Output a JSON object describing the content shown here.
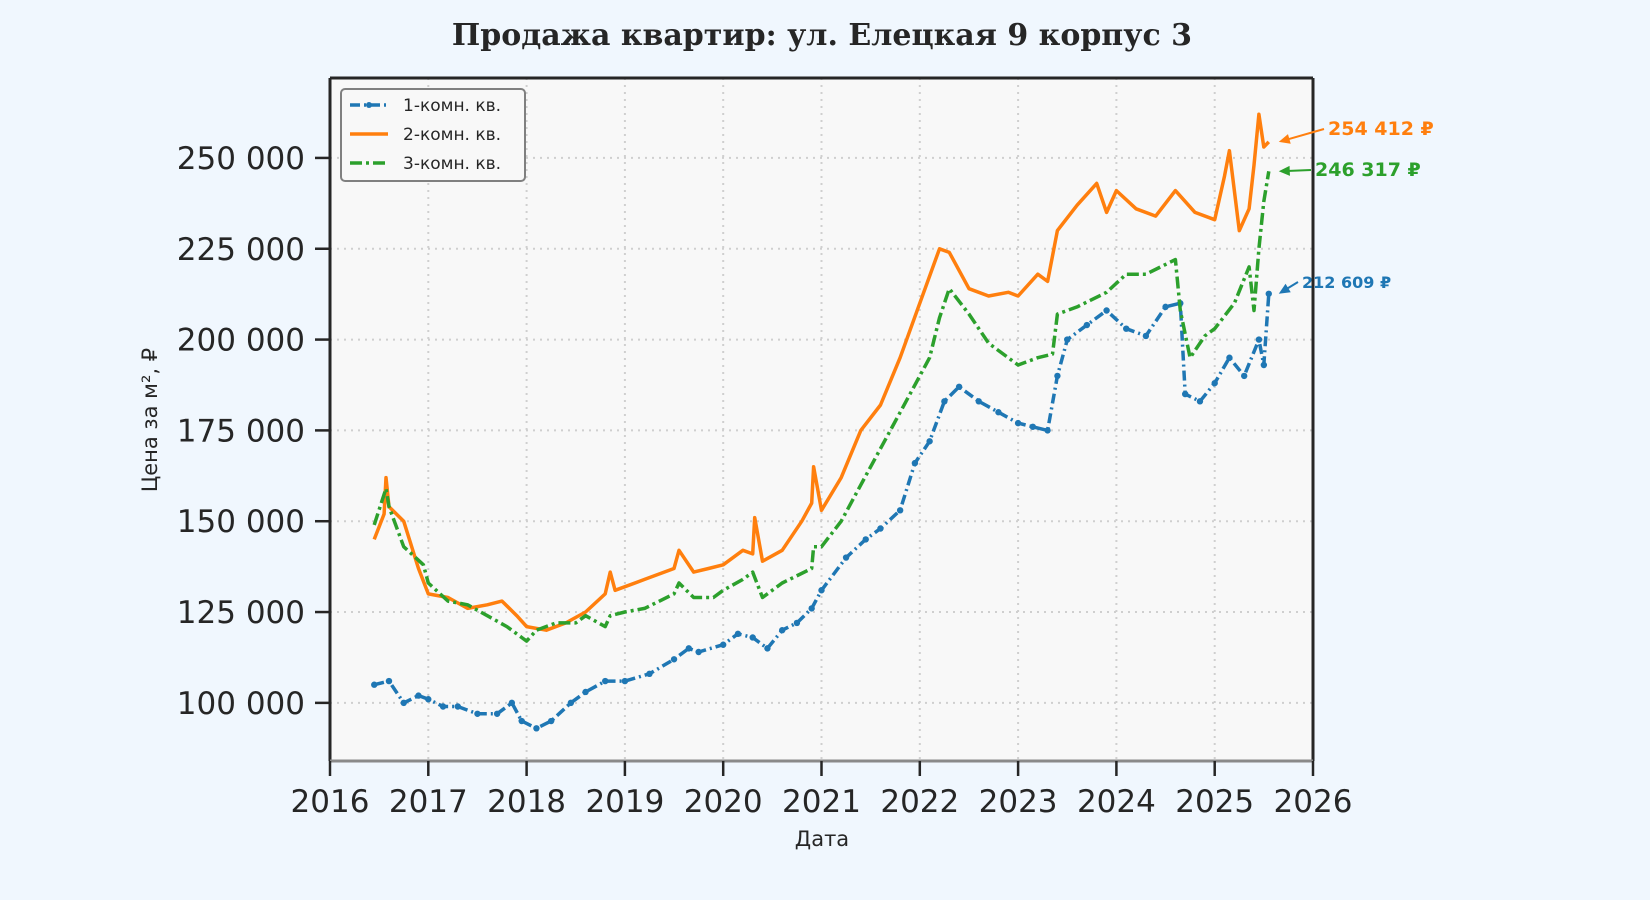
{
  "chart_data": {
    "type": "line",
    "title": "Продажа квартир: ул. Елецкая 9 корпус 3",
    "xlabel": "Дата",
    "ylabel": "Цена за м², ₽",
    "xlim": [
      2016,
      2026
    ],
    "ylim": [
      84000,
      272000
    ],
    "xticks": [
      "2016",
      "2017",
      "2018",
      "2019",
      "2020",
      "2021",
      "2022",
      "2023",
      "2024",
      "2025",
      "2026"
    ],
    "yticks": [
      {
        "value": 100000,
        "label": "100 000"
      },
      {
        "value": 125000,
        "label": "125 000"
      },
      {
        "value": 150000,
        "label": "150 000"
      },
      {
        "value": 175000,
        "label": "175 000"
      },
      {
        "value": 200000,
        "label": "200 000"
      },
      {
        "value": 225000,
        "label": "225 000"
      },
      {
        "value": 250000,
        "label": "250 000"
      }
    ],
    "grid": true,
    "legend_position": "top-left",
    "series": [
      {
        "name": "1-комн. кв.",
        "color": "#1f77b4",
        "line_style": "dash-dot-markers",
        "end_label": "212 609 ₽",
        "x": [
          2016.45,
          2016.6,
          2016.75,
          2016.9,
          2017.0,
          2017.15,
          2017.3,
          2017.5,
          2017.7,
          2017.85,
          2017.95,
          2018.1,
          2018.25,
          2018.45,
          2018.6,
          2018.8,
          2019.0,
          2019.25,
          2019.5,
          2019.65,
          2019.75,
          2020.0,
          2020.15,
          2020.3,
          2020.45,
          2020.6,
          2020.75,
          2020.9,
          2021.0,
          2021.25,
          2021.45,
          2021.6,
          2021.8,
          2021.95,
          2022.1,
          2022.25,
          2022.4,
          2022.6,
          2022.8,
          2023.0,
          2023.15,
          2023.3,
          2023.4,
          2023.5,
          2023.7,
          2023.9,
          2024.1,
          2024.3,
          2024.5,
          2024.65,
          2024.7,
          2024.85,
          2025.0,
          2025.15,
          2025.3,
          2025.45,
          2025.5,
          2025.55
        ],
        "values": [
          105000,
          106000,
          100000,
          102000,
          101000,
          99000,
          99000,
          97000,
          97000,
          100000,
          95000,
          93000,
          95000,
          100000,
          103000,
          106000,
          106000,
          108000,
          112000,
          115000,
          114000,
          116000,
          119000,
          118000,
          115000,
          120000,
          122000,
          126000,
          131000,
          140000,
          145000,
          148000,
          153000,
          166000,
          172000,
          183000,
          187000,
          183000,
          180000,
          177000,
          176000,
          175000,
          190000,
          200000,
          204000,
          208000,
          203000,
          201000,
          209000,
          210000,
          185000,
          183000,
          188000,
          195000,
          190000,
          200000,
          193000,
          212609
        ]
      },
      {
        "name": "2-комн. кв.",
        "color": "#ff7f0e",
        "line_style": "solid",
        "end_label": "254 412 ₽",
        "x": [
          2016.45,
          2016.55,
          2016.57,
          2016.6,
          2016.75,
          2016.9,
          2017.0,
          2017.2,
          2017.4,
          2017.6,
          2017.75,
          2017.9,
          2018.0,
          2018.2,
          2018.4,
          2018.6,
          2018.8,
          2018.85,
          2018.9,
          2019.2,
          2019.5,
          2019.55,
          2019.7,
          2019.85,
          2020.0,
          2020.2,
          2020.3,
          2020.32,
          2020.4,
          2020.6,
          2020.8,
          2020.9,
          2020.92,
          2021.0,
          2021.2,
          2021.4,
          2021.6,
          2021.8,
          2022.0,
          2022.2,
          2022.3,
          2022.5,
          2022.7,
          2022.9,
          2023.0,
          2023.2,
          2023.3,
          2023.4,
          2023.6,
          2023.8,
          2023.9,
          2024.0,
          2024.2,
          2024.4,
          2024.6,
          2024.8,
          2025.0,
          2025.1,
          2025.15,
          2025.25,
          2025.35,
          2025.4,
          2025.45,
          2025.5,
          2025.55
        ],
        "values": [
          145000,
          152000,
          162000,
          154000,
          150000,
          137000,
          130000,
          129000,
          126000,
          127000,
          128000,
          124000,
          121000,
          120000,
          122000,
          125000,
          130000,
          136000,
          131000,
          134000,
          137000,
          142000,
          136000,
          137000,
          138000,
          142000,
          141000,
          151000,
          139000,
          142000,
          150000,
          155000,
          165000,
          153000,
          162000,
          175000,
          182000,
          195000,
          210000,
          225000,
          224000,
          214000,
          212000,
          213000,
          212000,
          218000,
          216000,
          230000,
          237000,
          243000,
          235000,
          241000,
          236000,
          234000,
          241000,
          235000,
          233000,
          245000,
          252000,
          230000,
          236000,
          248000,
          262000,
          253000,
          254412
        ]
      },
      {
        "name": "3-комн. кв.",
        "color": "#2ca02c",
        "line_style": "dash-dot",
        "end_label": "246 317 ₽",
        "x": [
          2016.45,
          2016.57,
          2016.6,
          2016.75,
          2016.95,
          2017.0,
          2017.2,
          2017.4,
          2017.6,
          2017.8,
          2018.0,
          2018.1,
          2018.3,
          2018.5,
          2018.6,
          2018.8,
          2018.85,
          2019.0,
          2019.2,
          2019.5,
          2019.55,
          2019.7,
          2019.9,
          2020.0,
          2020.2,
          2020.3,
          2020.4,
          2020.6,
          2020.9,
          2020.92,
          2021.0,
          2021.2,
          2021.4,
          2021.6,
          2021.9,
          2022.1,
          2022.2,
          2022.3,
          2022.5,
          2022.7,
          2023.0,
          2023.2,
          2023.35,
          2023.4,
          2023.6,
          2023.9,
          2024.1,
          2024.3,
          2024.6,
          2024.65,
          2024.75,
          2024.9,
          2025.0,
          2025.2,
          2025.35,
          2025.4,
          2025.45,
          2025.5,
          2025.55
        ],
        "values": [
          149000,
          159000,
          154000,
          143000,
          138000,
          133000,
          128000,
          127000,
          124000,
          121000,
          117000,
          120000,
          122000,
          122000,
          124000,
          121000,
          124000,
          125000,
          126000,
          130000,
          133000,
          129000,
          129000,
          131000,
          134000,
          136000,
          129000,
          133000,
          137000,
          143000,
          143000,
          150000,
          160000,
          170000,
          185000,
          195000,
          206000,
          214000,
          207000,
          199000,
          193000,
          195000,
          196000,
          207000,
          209000,
          213000,
          218000,
          218000,
          222000,
          208000,
          195000,
          201000,
          203000,
          210000,
          220000,
          208000,
          225000,
          238000,
          246317
        ]
      }
    ]
  }
}
